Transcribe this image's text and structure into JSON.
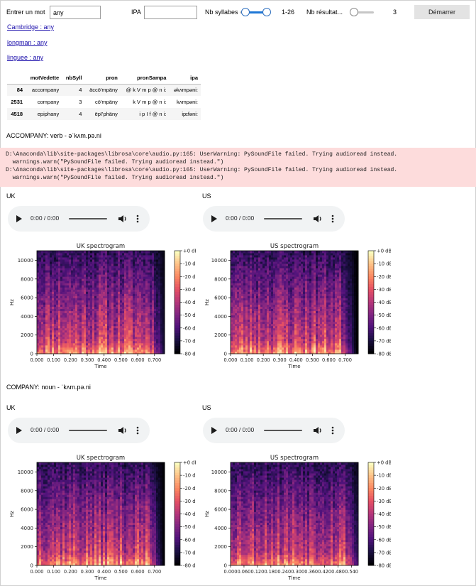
{
  "form": {
    "word_label": "Entrer un mot",
    "word_value": "any",
    "ipa_label": "IPA",
    "ipa_value": "",
    "syllables_label": "Nb syllabes",
    "syllables_range": "1-26",
    "results_label": "Nb résultat...",
    "results_value": "3",
    "start_button": "Démarrer"
  },
  "links": [
    "Cambridge : any",
    "longman : any",
    "linguee : any"
  ],
  "table": {
    "columns": [
      "motVedette",
      "nbSyll",
      "pron",
      "pronSampa",
      "ipa"
    ],
    "rows": [
      {
        "index": "84",
        "cells": [
          "accompany",
          "4",
          "äccö'mpäny",
          "@ k V m p @ n i:",
          "əkʌmpəni:"
        ]
      },
      {
        "index": "2531",
        "cells": [
          "company",
          "3",
          "cö'mpäny",
          "k V m p @ n i:",
          "kʌmpəni:"
        ]
      },
      {
        "index": "4518",
        "cells": [
          "epiphany",
          "4",
          "ëpï'phäny",
          "i p I f @ n i:",
          "ipɪfəni:"
        ]
      }
    ]
  },
  "warnings": [
    "D:\\Anaconda\\lib\\site-packages\\librosa\\core\\audio.py:165: UserWarning: PySoundFile failed. Trying audioread instead.",
    "  warnings.warn(\"PySoundFile failed. Trying audioread instead.\")",
    "D:\\Anaconda\\lib\\site-packages\\librosa\\core\\audio.py:165: UserWarning: PySoundFile failed. Trying audioread instead.",
    "  warnings.warn(\"PySoundFile failed. Trying audioread instead.\")"
  ],
  "entries": [
    {
      "heading": "ACCOMPANY: verb - əˈkʌm.pə.ni",
      "uk_label": "UK",
      "us_label": "US",
      "uk_time": "0:00 / 0:00",
      "us_time": "0:00 / 0:00"
    },
    {
      "heading": "COMPANY: noun - ˈkʌm.pə.ni",
      "uk_label": "UK",
      "us_label": "US",
      "uk_time": "0:00 / 0:00",
      "us_time": "0:00 / 0:00"
    }
  ],
  "chart_data": [
    {
      "type": "heatmap",
      "title": "UK spectrogram",
      "xlabel": "Time",
      "ylabel": "Hz",
      "xticks": [
        "0.000",
        "0.100",
        "0.200",
        "0.300",
        "0.400",
        "0.500",
        "0.600",
        "0.700"
      ],
      "yticks": [
        "0",
        "2000",
        "4000",
        "6000",
        "8000",
        "10000"
      ],
      "colorbar": [
        "+0 dB",
        "-10 dB",
        "-20 dB",
        "-30 dB",
        "-40 dB",
        "-50 dB",
        "-60 dB",
        "-70 dB",
        "-80 dB"
      ],
      "xlim": [
        0,
        0.76
      ],
      "ylim": [
        0,
        11025
      ]
    },
    {
      "type": "heatmap",
      "title": "US spectrogram",
      "xlabel": "Time",
      "ylabel": "Hz",
      "xticks": [
        "0.000",
        "0.100",
        "0.200",
        "0.300",
        "0.400",
        "0.500",
        "0.600",
        "0.700"
      ],
      "yticks": [
        "0",
        "2000",
        "4000",
        "6000",
        "8000",
        "10000"
      ],
      "colorbar": [
        "+0 dB",
        "-10 dB",
        "-20 dB",
        "-30 dB",
        "-40 dB",
        "-50 dB",
        "-60 dB",
        "-70 dB",
        "-80 dB"
      ],
      "xlim": [
        0,
        0.78
      ],
      "ylim": [
        0,
        11025
      ]
    },
    {
      "type": "heatmap",
      "title": "UK spectrogram",
      "xlabel": "Time",
      "ylabel": "Hz",
      "xticks": [
        "0.000",
        "0.100",
        "0.200",
        "0.300",
        "0.400",
        "0.500",
        "0.600",
        "0.700"
      ],
      "yticks": [
        "0",
        "2000",
        "4000",
        "6000",
        "8000",
        "10000"
      ],
      "colorbar": [
        "+0 dB",
        "-10 dB",
        "-20 dB",
        "-30 dB",
        "-40 dB",
        "-50 dB",
        "-60 dB",
        "-70 dB",
        "-80 dB"
      ],
      "xlim": [
        0,
        0.76
      ],
      "ylim": [
        0,
        11025
      ]
    },
    {
      "type": "heatmap",
      "title": "US spectrogram",
      "xlabel": "Time",
      "ylabel": "Hz",
      "xticks": [
        "0.000",
        "0.060",
        "0.120",
        "0.180",
        "0.240",
        "0.300",
        "0.360",
        "0.420",
        "0.480",
        "0.540"
      ],
      "yticks": [
        "0",
        "2000",
        "4000",
        "6000",
        "8000",
        "10000"
      ],
      "colorbar": [
        "+0 dB",
        "-10 dB",
        "-20 dB",
        "-30 dB",
        "-40 dB",
        "-50 dB",
        "-60 dB",
        "-70 dB",
        "-80 dB"
      ],
      "xlim": [
        0,
        0.57
      ],
      "ylim": [
        0,
        11025
      ]
    }
  ]
}
